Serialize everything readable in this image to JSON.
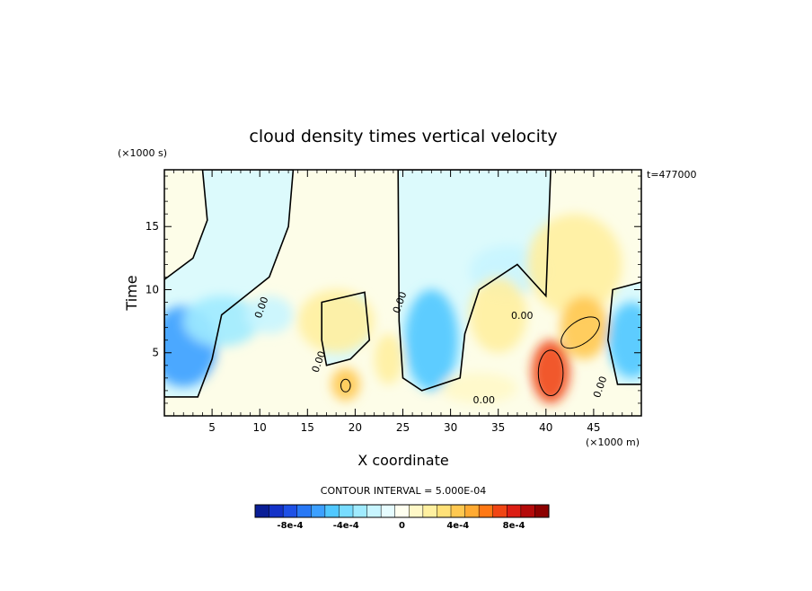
{
  "chart_data": {
    "type": "heatmap",
    "title": "cloud density times vertical velocity",
    "xlabel": "X coordinate",
    "ylabel": "Time",
    "x_unit": "(×1000 m)",
    "y_unit": "(×1000 s)",
    "time_label": "t=477000",
    "xlim": [
      0,
      50
    ],
    "ylim": [
      0,
      19.5
    ],
    "x_ticks": [
      5,
      10,
      15,
      20,
      25,
      30,
      35,
      40,
      45
    ],
    "y_ticks": [
      5,
      10,
      15
    ],
    "contour_interval_text": "CONTOUR INTERVAL = 5.000E-04",
    "contour_labels": [
      "0.00",
      "0.00",
      "0.00",
      "0.00",
      "0.00",
      "0.00"
    ],
    "colorbar": {
      "colors": [
        "#0a1e96",
        "#1432c8",
        "#1e50e6",
        "#2878f5",
        "#3ca0ff",
        "#50c8ff",
        "#78dcff",
        "#a0ebff",
        "#c8f5ff",
        "#e6fcff",
        "#fffff0",
        "#fff8c8",
        "#fff0a0",
        "#ffe178",
        "#ffc850",
        "#ffaa32",
        "#ff7814",
        "#f04614",
        "#dc1e14",
        "#b40a0a",
        "#8c0000"
      ],
      "tick_values": [
        "-8e-4",
        "-4e-4",
        "0",
        "4e-4",
        "8e-4"
      ]
    },
    "fields": {
      "background_positive_color": "#fdfde8",
      "background_negative_color": "#dcfafc",
      "negative_blobs": [
        {
          "x": 2,
          "y": 5.5,
          "rx": 3.5,
          "ry": 3.2,
          "v": -0.0006
        },
        {
          "x": 6,
          "y": 7.5,
          "rx": 4,
          "ry": 2,
          "v": -0.0003
        },
        {
          "x": 11,
          "y": 8.0,
          "rx": 2.5,
          "ry": 1.5,
          "v": -0.0002
        },
        {
          "x": 28,
          "y": 6,
          "rx": 2.8,
          "ry": 4,
          "v": -0.0005
        },
        {
          "x": 36,
          "y": 11.5,
          "rx": 4,
          "ry": 2,
          "v": -0.0002
        },
        {
          "x": 49,
          "y": 6,
          "rx": 2.5,
          "ry": 3,
          "v": -0.0005
        }
      ],
      "positive_blobs": [
        {
          "x": 18,
          "y": 7.5,
          "rx": 4,
          "ry": 2.5,
          "v": 0.0002
        },
        {
          "x": 19,
          "y": 2.5,
          "rx": 1.5,
          "ry": 1.3,
          "v": 0.0004
        },
        {
          "x": 23.5,
          "y": 4.5,
          "rx": 1.5,
          "ry": 2,
          "v": 0.0002
        },
        {
          "x": 35,
          "y": 8,
          "rx": 3,
          "ry": 3,
          "v": 0.0002
        },
        {
          "x": 43,
          "y": 12,
          "rx": 5,
          "ry": 4,
          "v": 0.0002
        },
        {
          "x": 40.5,
          "y": 3.5,
          "rx": 2,
          "ry": 2.5,
          "v": 0.0007
        },
        {
          "x": 44,
          "y": 7,
          "rx": 2.5,
          "ry": 2.5,
          "v": 0.0004
        },
        {
          "x": 33,
          "y": 2.2,
          "rx": 4,
          "ry": 1.2,
          "v": 0.0001
        }
      ]
    }
  }
}
